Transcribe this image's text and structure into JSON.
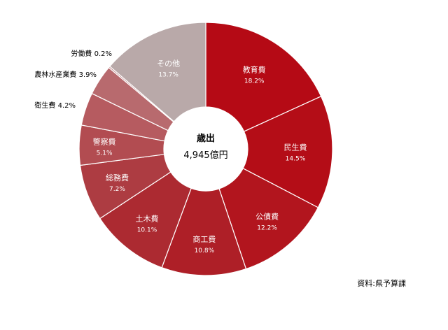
{
  "chart_data": {
    "type": "pie",
    "donut": true,
    "center_title": "歳出",
    "center_value": "4,945億円",
    "slices": [
      {
        "label": "教育費",
        "percent_text": "18.2%",
        "value": 18.2,
        "color": "#b50a15"
      },
      {
        "label": "民生費",
        "percent_text": "14.5%",
        "value": 14.5,
        "color": "#b40d17"
      },
      {
        "label": "公債費",
        "percent_text": "12.2%",
        "value": 12.2,
        "color": "#b2151e"
      },
      {
        "label": "商工費",
        "percent_text": "10.8%",
        "value": 10.8,
        "color": "#ae1f27"
      },
      {
        "label": "土木費",
        "percent_text": "10.1%",
        "value": 10.1,
        "color": "#ac2a31"
      },
      {
        "label": "総務費",
        "percent_text": "7.2%",
        "value": 7.2,
        "color": "#ad3c42"
      },
      {
        "label": "警察費",
        "percent_text": "5.1%",
        "value": 5.1,
        "color": "#b24c51"
      },
      {
        "label": "衛生費",
        "percent_text": "4.2%",
        "value": 4.2,
        "color": "#b65b60"
      },
      {
        "label": "農林水産業費",
        "percent_text": "3.9%",
        "value": 3.9,
        "color": "#b86a6e"
      },
      {
        "label": "労働費",
        "percent_text": "0.2%",
        "value": 0.2,
        "color": "#bd8588"
      },
      {
        "label": "その他",
        "percent_text": "13.7%",
        "value": 13.7,
        "color": "#b9a9a9"
      }
    ],
    "source": "資料:県予算課"
  }
}
